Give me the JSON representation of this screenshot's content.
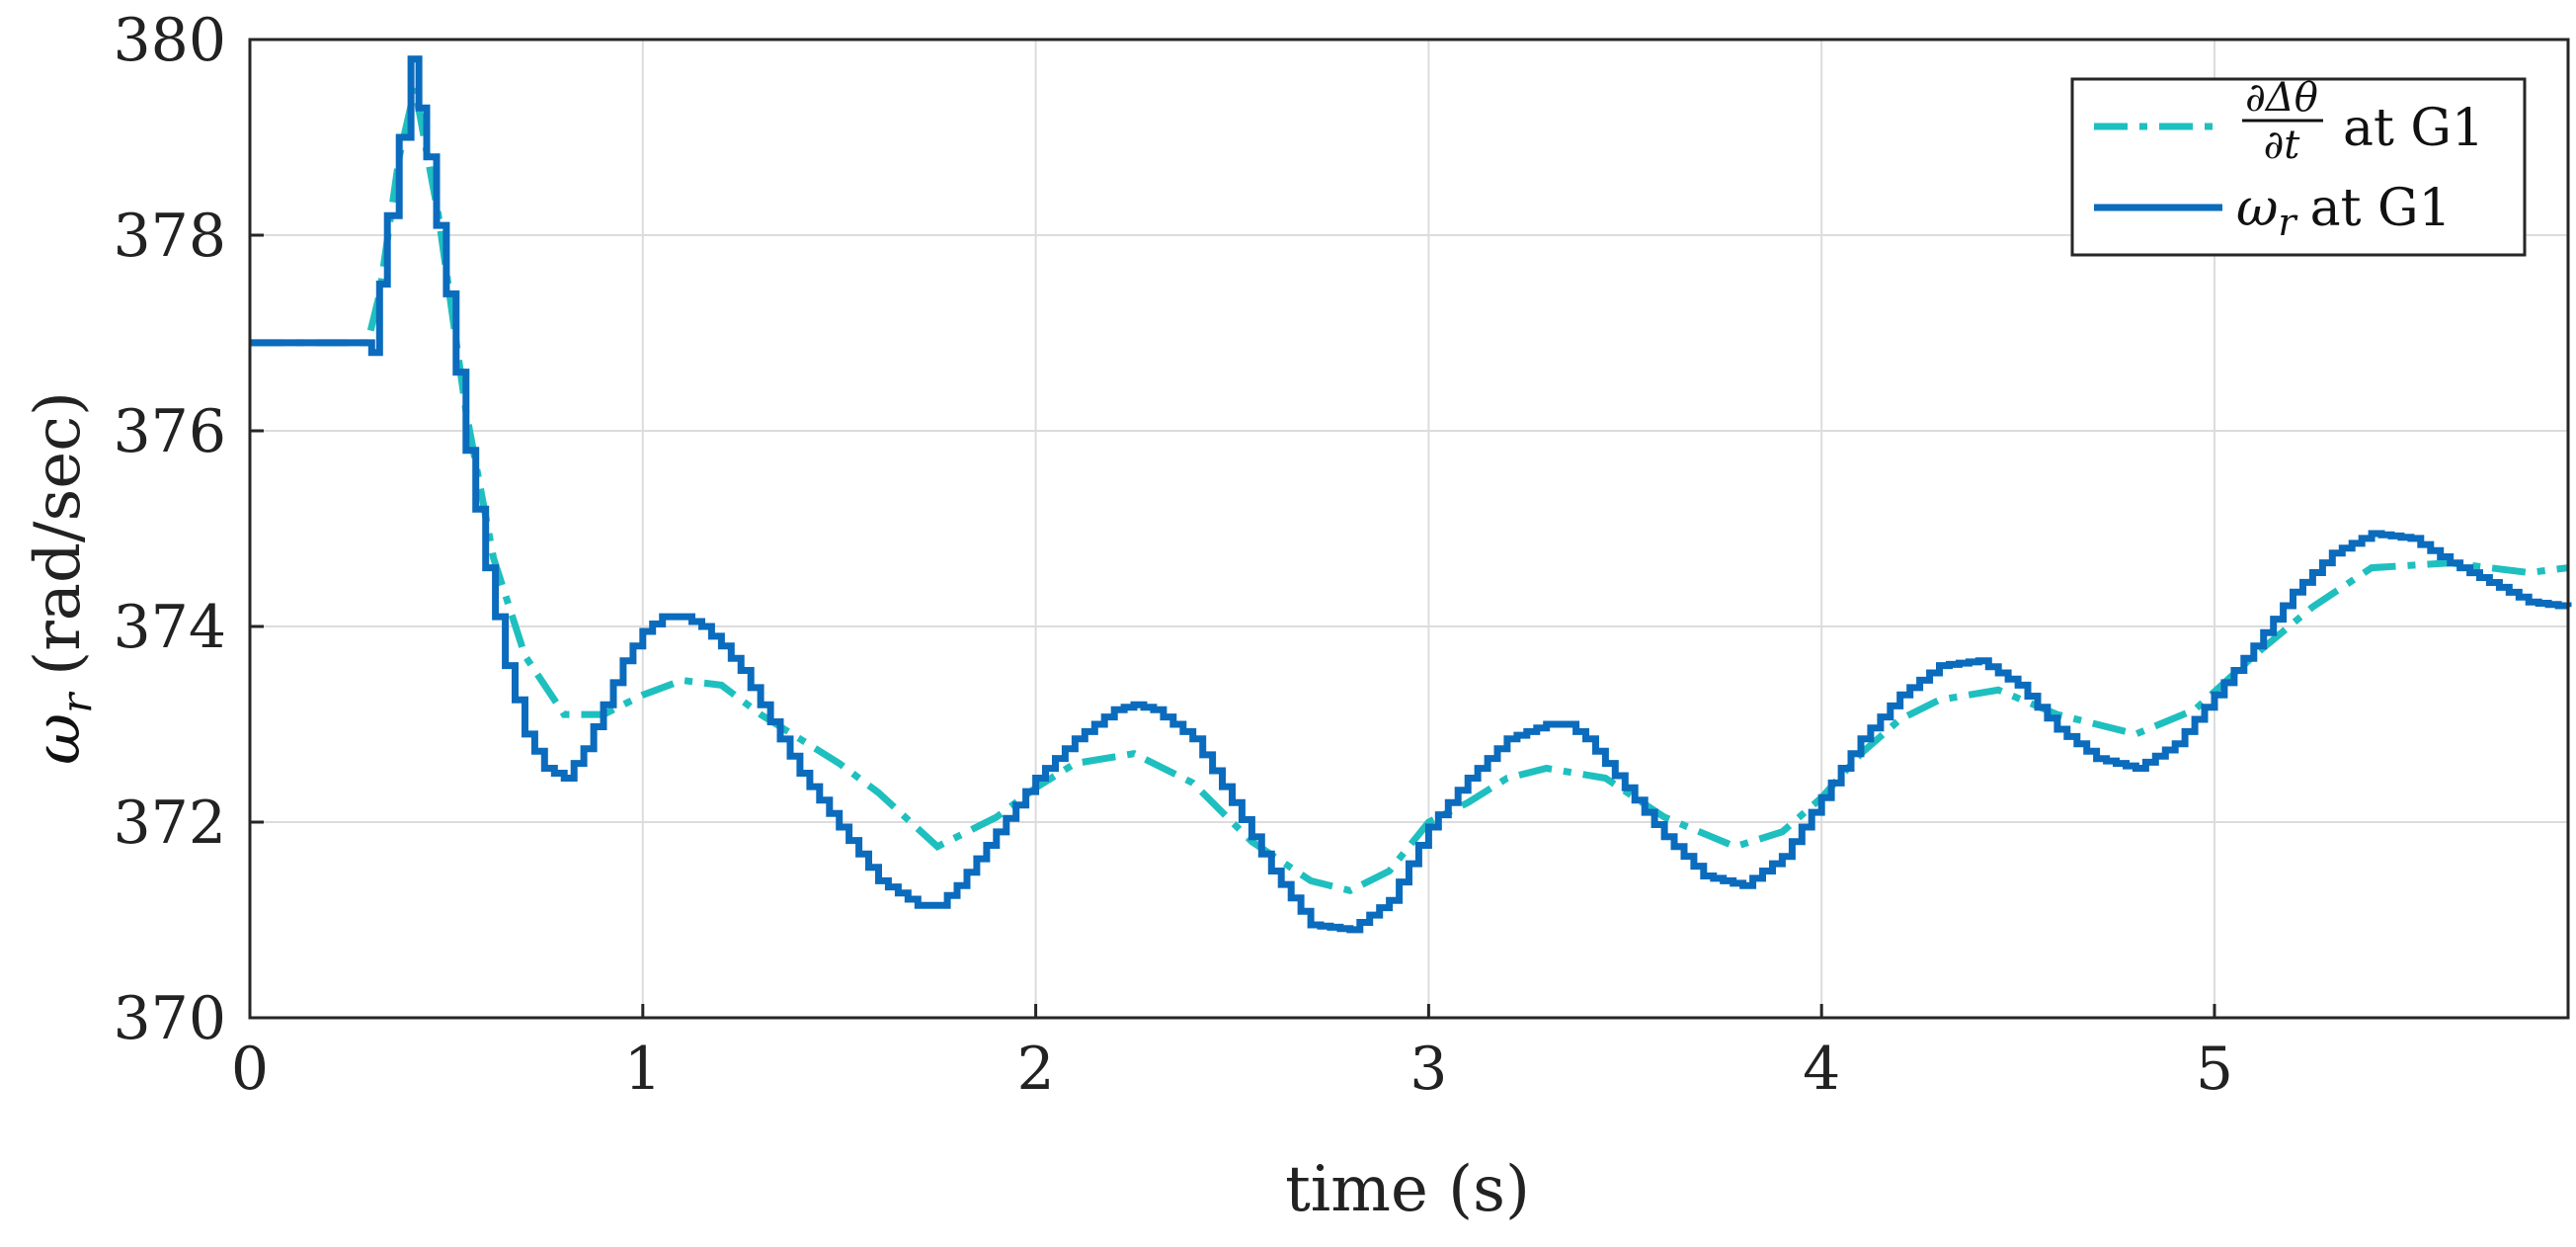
{
  "chart_data": {
    "type": "line",
    "title": "",
    "xlabel": "time (s)",
    "ylabel_symbol": "ω",
    "ylabel_subscript": "r",
    "ylabel_unit": "(rad/sec)",
    "xlim": [
      0,
      5.9
    ],
    "ylim": [
      370,
      380
    ],
    "xticks": [
      0,
      1,
      2,
      3,
      4,
      5
    ],
    "yticks": [
      370,
      372,
      374,
      376,
      378,
      380
    ],
    "grid": true,
    "legend_position": "top-right",
    "series": [
      {
        "name_numerator": "∂Δθ",
        "name_denominator": "∂t",
        "name_suffix": "at G1",
        "color": "#1fbfbf",
        "style": "dash-dot",
        "x": [
          0,
          0.3,
          0.33,
          0.38,
          0.42,
          0.48,
          0.55,
          0.62,
          0.7,
          0.8,
          0.9,
          1.0,
          1.1,
          1.2,
          1.3,
          1.4,
          1.5,
          1.6,
          1.75,
          1.9,
          2.0,
          2.1,
          2.25,
          2.4,
          2.55,
          2.7,
          2.8,
          2.9,
          3.0,
          3.1,
          3.2,
          3.3,
          3.45,
          3.6,
          3.78,
          3.9,
          4.0,
          4.1,
          4.2,
          4.3,
          4.45,
          4.6,
          4.8,
          4.95,
          5.1,
          5.25,
          5.4,
          5.6,
          5.8,
          5.9
        ],
        "y": [
          376.9,
          376.9,
          377.4,
          378.8,
          379.5,
          378.2,
          376.2,
          374.7,
          373.7,
          373.1,
          373.1,
          373.3,
          373.45,
          373.4,
          373.1,
          372.85,
          372.6,
          372.3,
          371.75,
          372.05,
          372.35,
          372.6,
          372.7,
          372.4,
          371.8,
          371.4,
          371.3,
          371.5,
          372.0,
          372.2,
          372.45,
          372.55,
          372.45,
          372.05,
          371.75,
          371.9,
          372.25,
          372.7,
          373.05,
          373.25,
          373.35,
          373.1,
          372.9,
          373.15,
          373.7,
          374.2,
          374.6,
          374.65,
          374.55,
          374.6
        ]
      },
      {
        "name_symbol": "ω",
        "name_subscript": "r",
        "name_suffix": "at G1",
        "color": "#0b6bbd",
        "style": "solid-step",
        "x": [
          0,
          0.3,
          0.31,
          0.35,
          0.41,
          0.45,
          0.5,
          0.55,
          0.6,
          0.65,
          0.7,
          0.75,
          0.8,
          0.85,
          0.9,
          0.95,
          1.0,
          1.05,
          1.1,
          1.15,
          1.2,
          1.25,
          1.3,
          1.4,
          1.5,
          1.6,
          1.7,
          1.75,
          1.8,
          1.9,
          2.0,
          2.1,
          2.2,
          2.25,
          2.3,
          2.4,
          2.5,
          2.6,
          2.7,
          2.8,
          2.9,
          3.0,
          3.1,
          3.2,
          3.3,
          3.35,
          3.4,
          3.5,
          3.6,
          3.7,
          3.8,
          3.9,
          4.0,
          4.1,
          4.2,
          4.3,
          4.4,
          4.5,
          4.6,
          4.7,
          4.8,
          4.9,
          5.0,
          5.1,
          5.2,
          5.3,
          5.4,
          5.5,
          5.6,
          5.7,
          5.8,
          5.9
        ],
        "y": [
          376.9,
          376.9,
          376.8,
          378.2,
          379.8,
          378.8,
          377.4,
          375.8,
          374.6,
          373.6,
          372.9,
          372.55,
          372.45,
          372.75,
          373.2,
          373.65,
          373.95,
          374.1,
          374.1,
          374.0,
          373.8,
          373.55,
          373.2,
          372.5,
          371.95,
          371.4,
          371.15,
          371.15,
          371.35,
          371.9,
          372.45,
          372.85,
          373.15,
          373.2,
          373.15,
          372.85,
          372.2,
          371.5,
          370.95,
          370.9,
          371.2,
          371.95,
          372.45,
          372.85,
          373.0,
          373.0,
          372.85,
          372.35,
          371.85,
          371.45,
          371.35,
          371.65,
          372.25,
          372.85,
          373.3,
          373.6,
          373.65,
          373.4,
          372.95,
          372.65,
          372.55,
          372.8,
          373.3,
          373.8,
          374.35,
          374.75,
          374.95,
          374.9,
          374.65,
          374.45,
          374.25,
          374.2
        ]
      }
    ]
  }
}
